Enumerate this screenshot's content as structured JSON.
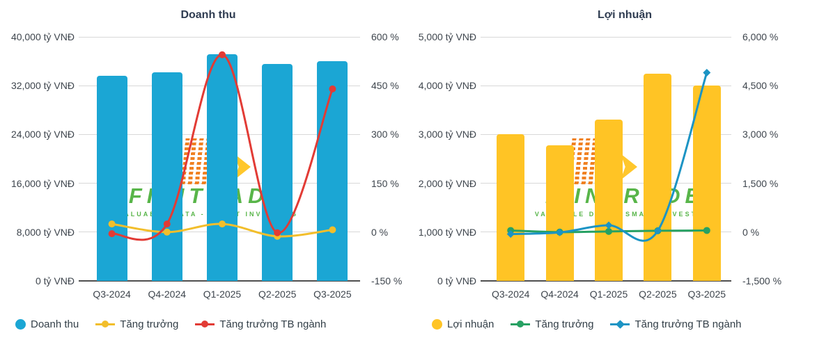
{
  "watermark": {
    "brand": "FIINTRADE",
    "tagline": "VALUABLE DATA - SMART INVESTING",
    "brand_color": "#58b549",
    "block_color": "#f08122",
    "arrow_color": "#ffc72c"
  },
  "chart_data": [
    {
      "type": "bar",
      "subtype": "bar+line combo, dual y-axis",
      "title": "Doanh thu",
      "categories": [
        "Q3-2024",
        "Q4-2024",
        "Q1-2025",
        "Q2-2025",
        "Q3-2025"
      ],
      "left_axis": {
        "unit": "tỷ VNĐ",
        "min": 0,
        "max": 40000,
        "tick_step": 8000,
        "tick_labels": [
          "0 tỷ VNĐ",
          "8,000 tỷ VNĐ",
          "16,000 tỷ VNĐ",
          "24,000 tỷ VNĐ",
          "32,000 tỷ VNĐ",
          "40,000 tỷ VNĐ"
        ]
      },
      "right_axis": {
        "unit": "%",
        "min": -150,
        "max": 600,
        "tick_step": 150,
        "tick_labels": [
          "-150 %",
          "0 %",
          "150 %",
          "300 %",
          "450 %",
          "600 %"
        ]
      },
      "series": [
        {
          "name": "Doanh thu",
          "type": "bar",
          "axis": "left",
          "color": "#1ba6d4",
          "marker": "circle",
          "values": [
            33600,
            34200,
            37100,
            35500,
            36000
          ]
        },
        {
          "name": "Tăng trưởng",
          "type": "line",
          "axis": "right",
          "color": "#f2be2b",
          "marker": "circle",
          "values": [
            25,
            0,
            25,
            -13,
            7
          ]
        },
        {
          "name": "Tăng trưởng TB ngành",
          "type": "line",
          "axis": "right",
          "color": "#e23b35",
          "marker": "circle",
          "values": [
            -5,
            25,
            545,
            -2,
            440
          ]
        }
      ],
      "grid": true,
      "legend_position": "bottom"
    },
    {
      "type": "bar",
      "subtype": "bar+line combo, dual y-axis",
      "title": "Lợi nhuận",
      "categories": [
        "Q3-2024",
        "Q4-2024",
        "Q1-2025",
        "Q2-2025",
        "Q3-2025"
      ],
      "left_axis": {
        "unit": "tỷ VNĐ",
        "min": 0,
        "max": 5000,
        "tick_step": 1000,
        "tick_labels": [
          "0 tỷ VNĐ",
          "1,000 tỷ VNĐ",
          "2,000 tỷ VNĐ",
          "3,000 tỷ VNĐ",
          "4,000 tỷ VNĐ",
          "5,000 tỷ VNĐ"
        ]
      },
      "right_axis": {
        "unit": "%",
        "min": -1500,
        "max": 6000,
        "tick_step": 1500,
        "tick_labels": [
          "-1,500 %",
          "0 %",
          "1,500 %",
          "3,000 %",
          "4,500 %",
          "6,000 %"
        ]
      },
      "series": [
        {
          "name": "Lợi nhuận",
          "type": "bar",
          "axis": "left",
          "color": "#ffc425",
          "marker": "circle",
          "values": [
            3000,
            2780,
            3300,
            4240,
            4000
          ]
        },
        {
          "name": "Tăng trưởng",
          "type": "line",
          "axis": "right",
          "color": "#27a163",
          "marker": "circle",
          "values": [
            50,
            0,
            20,
            40,
            50
          ]
        },
        {
          "name": "Tăng trưởng TB ngành",
          "type": "line",
          "axis": "right",
          "color": "#1c94c4",
          "marker": "diamond",
          "values": [
            -60,
            -10,
            210,
            40,
            4900
          ]
        }
      ],
      "grid": true,
      "legend_position": "bottom"
    }
  ]
}
